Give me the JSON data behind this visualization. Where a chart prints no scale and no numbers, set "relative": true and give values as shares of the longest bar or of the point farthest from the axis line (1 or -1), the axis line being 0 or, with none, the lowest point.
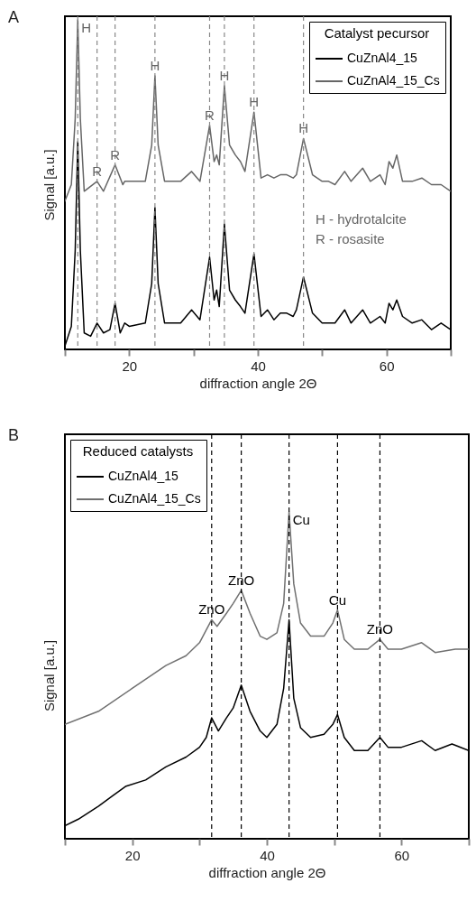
{
  "chart_data": [
    {
      "type": "line",
      "title": "A",
      "xlabel": "diffraction angle 2Θ",
      "ylabel": "Signal [a.u.]",
      "legend_title": "Catalyst pecursor",
      "legend": "top right",
      "relative": true,
      "xlim": [
        10,
        70
      ],
      "xticks": [
        {
          "value": 10,
          "label": null
        },
        20,
        {
          "value": 30,
          "label": null
        },
        40,
        {
          "value": 50,
          "label": null
        },
        60,
        {
          "value": 70,
          "label": null
        }
      ],
      "series": [
        {
          "name": "CuZnAl4_15",
          "color": "#000000",
          "x": [
            10,
            11,
            11.6,
            12,
            12.4,
            13,
            14,
            15,
            16,
            17,
            17.8,
            18.6,
            19.3,
            20,
            22.5,
            23.5,
            24,
            24.5,
            25.5,
            28,
            29.7,
            31,
            32.5,
            33.2,
            33.6,
            34,
            34.8,
            35.6,
            36.5,
            37.3,
            38,
            39.4,
            40.5,
            41.5,
            42.5,
            43.5,
            44.5,
            45.5,
            46,
            47.1,
            48.5,
            50,
            51,
            52,
            53.5,
            54.5,
            56.3,
            57.5,
            59,
            59.8,
            60.4,
            61,
            61.6,
            62.5,
            64,
            65.5,
            67,
            68.5,
            70
          ],
          "values": [
            0.01,
            0.07,
            0.3,
            0.63,
            0.3,
            0.05,
            0.04,
            0.08,
            0.05,
            0.06,
            0.14,
            0.05,
            0.08,
            0.07,
            0.08,
            0.2,
            0.43,
            0.2,
            0.08,
            0.08,
            0.12,
            0.09,
            0.28,
            0.15,
            0.18,
            0.13,
            0.38,
            0.18,
            0.15,
            0.13,
            0.11,
            0.29,
            0.1,
            0.12,
            0.09,
            0.11,
            0.11,
            0.1,
            0.12,
            0.22,
            0.11,
            0.08,
            0.08,
            0.08,
            0.12,
            0.08,
            0.12,
            0.08,
            0.1,
            0.08,
            0.14,
            0.12,
            0.15,
            0.1,
            0.08,
            0.09,
            0.06,
            0.08,
            0.06
          ]
        },
        {
          "name": "CuZnAl4_15_Cs",
          "color": "#666666",
          "x": [
            10,
            11,
            11.6,
            12,
            12.4,
            13,
            15,
            16,
            17.8,
            19,
            19.3,
            22.5,
            23.5,
            24,
            24.5,
            25.5,
            28,
            29.7,
            31,
            32.5,
            33.2,
            33.6,
            34,
            34.8,
            35.6,
            36.5,
            37.3,
            38,
            39.4,
            40.5,
            41.5,
            42.5,
            43.5,
            44.5,
            45.5,
            46,
            47.1,
            48.5,
            50,
            51,
            52,
            53.5,
            54.5,
            56.3,
            57.5,
            59,
            59.8,
            60.4,
            61,
            61.6,
            62.5,
            64,
            65.5,
            67,
            68.5,
            70
          ],
          "values": [
            0.45,
            0.5,
            0.7,
            1,
            0.7,
            0.48,
            0.51,
            0.48,
            0.56,
            0.5,
            0.51,
            0.51,
            0.62,
            0.83,
            0.62,
            0.51,
            0.51,
            0.54,
            0.51,
            0.68,
            0.57,
            0.59,
            0.56,
            0.8,
            0.62,
            0.59,
            0.57,
            0.54,
            0.72,
            0.52,
            0.53,
            0.52,
            0.53,
            0.53,
            0.52,
            0.53,
            0.64,
            0.53,
            0.51,
            0.51,
            0.5,
            0.54,
            0.51,
            0.55,
            0.51,
            0.53,
            0.5,
            0.57,
            0.55,
            0.59,
            0.51,
            0.51,
            0.52,
            0.5,
            0.5,
            0.48
          ]
        }
      ],
      "ref_lines": [
        {
          "axis": "x",
          "value": 12,
          "color": "#888888",
          "line_style": "dashed"
        },
        {
          "axis": "x",
          "value": 15,
          "color": "#888888",
          "line_style": "dashed"
        },
        {
          "axis": "x",
          "value": 17.8,
          "color": "#888888",
          "line_style": "dashed"
        },
        {
          "axis": "x",
          "value": 24,
          "color": "#888888",
          "line_style": "dashed"
        },
        {
          "axis": "x",
          "value": 32.5,
          "color": "#888888",
          "line_style": "dashed"
        },
        {
          "axis": "x",
          "value": 34.8,
          "color": "#888888",
          "line_style": "dashed"
        },
        {
          "axis": "x",
          "value": 39.4,
          "color": "#888888",
          "line_style": "dashed"
        },
        {
          "axis": "x",
          "value": 47.1,
          "color": "#888888",
          "line_style": "dashed"
        }
      ],
      "annotations": [
        {
          "text": "H",
          "x": 12,
          "y": 1
        },
        {
          "text": "R",
          "x": 15,
          "y": 0.51
        },
        {
          "text": "R",
          "x": 17.8,
          "y": 0.56
        },
        {
          "text": "H",
          "x": 24,
          "y": 0.83
        },
        {
          "text": "R",
          "x": 32.5,
          "y": 0.68
        },
        {
          "text": "H",
          "x": 34.8,
          "y": 0.8
        },
        {
          "text": "H",
          "x": 39.4,
          "y": 0.72
        },
        {
          "text": "H",
          "x": 47.1,
          "y": 0.64
        },
        "H - hydrotalcite",
        "R - rosasite"
      ]
    },
    {
      "type": "line",
      "title": "B",
      "xlabel": "diffraction angle 2Θ",
      "ylabel": "Signal [a.u.]",
      "legend_title": "Reduced catalysts",
      "legend": "top left",
      "relative": true,
      "xlim": [
        10,
        70
      ],
      "xticks": [
        {
          "value": 10,
          "label": null
        },
        20,
        {
          "value": 30,
          "label": null
        },
        40,
        {
          "value": 50,
          "label": null
        },
        60,
        {
          "value": 70,
          "label": null
        }
      ],
      "series": [
        {
          "name": "CuZnAl4_15",
          "color": "#000000",
          "x": [
            10,
            12,
            15,
            17,
            19,
            22,
            25,
            28,
            30,
            31,
            31.8,
            32.8,
            34,
            35,
            36.2,
            37.5,
            39,
            40,
            41.5,
            42.5,
            43.3,
            44,
            45,
            46.5,
            48.5,
            49.8,
            50.5,
            51.5,
            53,
            55,
            56.8,
            58,
            60,
            63,
            65,
            67.5,
            70
          ],
          "values": [
            0.04,
            0.06,
            0.1,
            0.13,
            0.16,
            0.18,
            0.22,
            0.25,
            0.28,
            0.31,
            0.37,
            0.33,
            0.37,
            0.4,
            0.47,
            0.39,
            0.33,
            0.31,
            0.35,
            0.46,
            0.67,
            0.43,
            0.34,
            0.31,
            0.32,
            0.35,
            0.38,
            0.31,
            0.27,
            0.27,
            0.31,
            0.28,
            0.28,
            0.3,
            0.27,
            0.29,
            0.27
          ]
        },
        {
          "name": "CuZnAl4_15_Cs",
          "color": "#707070",
          "x": [
            10,
            15,
            20,
            25,
            28,
            30,
            31.8,
            32.6,
            34,
            35,
            36.2,
            37.5,
            39,
            40,
            41.5,
            42.5,
            43.3,
            44,
            45,
            46.5,
            48.5,
            49.8,
            50.5,
            51.5,
            53,
            55,
            56.8,
            58,
            60,
            63,
            65,
            68,
            70
          ],
          "values": [
            0.35,
            0.39,
            0.46,
            0.53,
            0.56,
            0.6,
            0.67,
            0.65,
            0.69,
            0.72,
            0.76,
            0.69,
            0.62,
            0.61,
            0.63,
            0.72,
            1,
            0.78,
            0.66,
            0.62,
            0.62,
            0.66,
            0.7,
            0.61,
            0.58,
            0.58,
            0.61,
            0.58,
            0.58,
            0.6,
            0.57,
            0.58,
            0.58
          ]
        }
      ],
      "ref_lines": [
        {
          "axis": "x",
          "value": 31.8,
          "color": "#000000",
          "line_style": "dashed"
        },
        {
          "axis": "x",
          "value": 36.2,
          "color": "#000000",
          "line_style": "dashed"
        },
        {
          "axis": "x",
          "value": 43.3,
          "color": "#000000",
          "line_style": "dashed"
        },
        {
          "axis": "x",
          "value": 50.5,
          "color": "#000000",
          "line_style": "dashed"
        },
        {
          "axis": "x",
          "value": 56.8,
          "color": "#000000",
          "line_style": "dashed"
        }
      ],
      "annotations": [
        {
          "text": "ZnO",
          "x": 31.8,
          "y": 0.67
        },
        {
          "text": "ZnO",
          "x": 36.2,
          "y": 0.76
        },
        {
          "text": "Cu",
          "x": 43.3,
          "y": 1
        },
        {
          "text": "Cu",
          "x": 50.5,
          "y": 0.7
        },
        {
          "text": "ZnO",
          "x": 56.8,
          "y": 0.61
        }
      ]
    }
  ]
}
